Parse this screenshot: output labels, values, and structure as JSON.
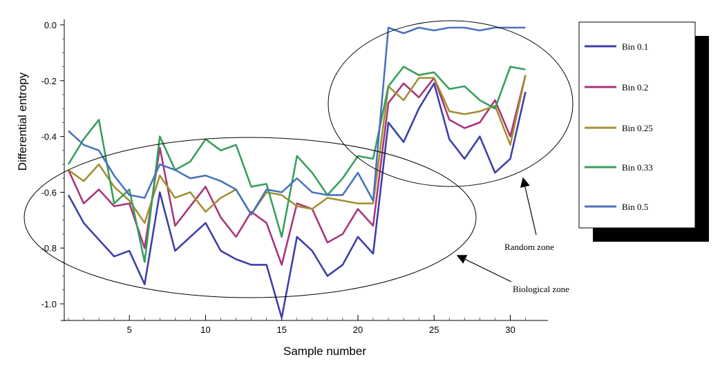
{
  "chart_data": {
    "type": "line",
    "title": "",
    "xlabel": "Sample number",
    "ylabel": "Differential entropy",
    "xlim": [
      0,
      31.5
    ],
    "ylim": [
      -1.05,
      0.02
    ],
    "x_ticks": [
      5,
      10,
      15,
      20,
      25,
      30
    ],
    "y_ticks": [
      0.0,
      -0.2,
      -0.4,
      -0.6,
      -0.8,
      -1.0
    ],
    "y_tick_labels": [
      "0.0",
      "-0.2",
      "-0.4",
      "-0.6",
      "-0.8",
      "-1.0"
    ],
    "x": [
      1,
      2,
      3,
      4,
      5,
      6,
      7,
      8,
      9,
      10,
      11,
      12,
      13,
      14,
      15,
      16,
      17,
      18,
      19,
      20,
      21,
      22,
      23,
      24,
      25,
      26,
      27,
      28,
      29,
      30,
      31
    ],
    "series": [
      {
        "name": "Bin 0.1",
        "color": "#3f3fa8",
        "values": [
          -0.61,
          -0.71,
          -0.77,
          -0.83,
          -0.81,
          -0.93,
          -0.6,
          -0.81,
          -0.76,
          -0.71,
          -0.81,
          -0.84,
          -0.86,
          -0.86,
          -1.05,
          -0.76,
          -0.81,
          -0.9,
          -0.86,
          -0.76,
          -0.82,
          -0.35,
          -0.42,
          -0.3,
          -0.21,
          -0.41,
          -0.48,
          -0.4,
          -0.53,
          -0.48,
          -0.24
        ]
      },
      {
        "name": "Bin 0.2",
        "color": "#a8357a",
        "values": [
          -0.52,
          -0.64,
          -0.59,
          -0.65,
          -0.64,
          -0.8,
          -0.44,
          -0.72,
          -0.65,
          -0.58,
          -0.69,
          -0.76,
          -0.67,
          -0.71,
          -0.86,
          -0.64,
          -0.66,
          -0.78,
          -0.75,
          -0.66,
          -0.72,
          -0.28,
          -0.21,
          -0.26,
          -0.19,
          -0.34,
          -0.37,
          -0.35,
          -0.27,
          -0.4,
          -0.18
        ]
      },
      {
        "name": "Bin 0.25",
        "color": "#a39033",
        "values": [
          -0.52,
          -0.56,
          -0.5,
          -0.58,
          -0.63,
          -0.71,
          -0.54,
          -0.62,
          -0.6,
          -0.67,
          -0.62,
          -0.59,
          -0.68,
          -0.6,
          -0.61,
          -0.65,
          -0.66,
          -0.62,
          -0.63,
          -0.64,
          -0.64,
          -0.22,
          -0.27,
          -0.19,
          -0.19,
          -0.31,
          -0.32,
          -0.31,
          -0.29,
          -0.43,
          -0.18
        ]
      },
      {
        "name": "Bin 0.33",
        "color": "#3a9e5c",
        "values": [
          -0.5,
          -0.41,
          -0.34,
          -0.64,
          -0.59,
          -0.85,
          -0.4,
          -0.52,
          -0.49,
          -0.41,
          -0.45,
          -0.43,
          -0.58,
          -0.57,
          -0.76,
          -0.47,
          -0.53,
          -0.61,
          -0.55,
          -0.47,
          -0.48,
          -0.22,
          -0.15,
          -0.18,
          -0.17,
          -0.23,
          -0.22,
          -0.27,
          -0.3,
          -0.15,
          -0.16
        ]
      },
      {
        "name": "Bin 0.5",
        "color": "#4b72bd",
        "values": [
          -0.38,
          -0.43,
          -0.45,
          -0.54,
          -0.61,
          -0.62,
          -0.5,
          -0.52,
          -0.55,
          -0.54,
          -0.56,
          -0.59,
          -0.68,
          -0.59,
          -0.6,
          -0.55,
          -0.6,
          -0.61,
          -0.61,
          -0.53,
          -0.63,
          -0.01,
          -0.03,
          -0.01,
          -0.02,
          -0.01,
          -0.01,
          -0.02,
          -0.01,
          -0.01,
          -0.01
        ]
      }
    ],
    "legend_position": "right",
    "annotations": [
      {
        "label": "Random zone",
        "target": "ellipse around samples 22-31"
      },
      {
        "label": "Biological zone",
        "target": "ellipse around samples 1-21"
      }
    ]
  }
}
